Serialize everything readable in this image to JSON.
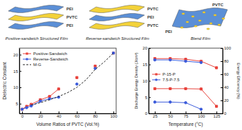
{
  "diagram": {
    "panels": [
      {
        "title": "Positive-sandwich Structured Film",
        "layers": [
          "PEI",
          "PVTC",
          "PEI"
        ]
      },
      {
        "title": "Reverse-sandwich Structured Film",
        "layers": [
          "PVTC",
          "PEI",
          "PVTC"
        ]
      },
      {
        "title": "Blend Film",
        "labels": [
          "PVTC",
          "PEI"
        ]
      }
    ]
  },
  "chart_data": [
    {
      "type": "line",
      "x_label": "Volume Ratios of PVTC (Vol.%)",
      "y_label": "Dielectric Constant",
      "x": [
        0,
        5,
        10,
        20,
        30,
        40,
        50,
        60,
        70,
        80,
        90,
        100
      ],
      "series": [
        {
          "name": "Positive-Sandwich",
          "color": "#e8413a",
          "marker": "square",
          "line_style": "solid",
          "values": [
            3.3,
            4.2,
            4.8,
            6.2,
            7.2,
            9.5,
            null,
            13.0,
            null,
            16.5,
            null,
            20.5
          ]
        },
        {
          "name": "Reverse-Sandwich",
          "color": "#3b5bdb",
          "marker": "circle",
          "line_style": "solid",
          "values": [
            3.3,
            3.8,
            4.3,
            5.8,
            6.5,
            7.0,
            null,
            11.0,
            null,
            15.8,
            null,
            20.5
          ]
        },
        {
          "name": "M-G",
          "color": "#222222",
          "marker": "none",
          "line_style": "dashed",
          "values": [
            3.3,
            null,
            4.6,
            5.3,
            6.2,
            7.2,
            8.4,
            10.0,
            12.3,
            15.5,
            17.8,
            20.5
          ]
        }
      ],
      "xlim": [
        -3,
        103
      ],
      "xticks": [
        0,
        20,
        40,
        60,
        80,
        100
      ],
      "ylim": [
        2,
        22
      ],
      "yticks": [
        5,
        10,
        15,
        20
      ],
      "legend": "upper left"
    },
    {
      "type": "line",
      "x_label": "Temperature (°C)",
      "y_label": "Discharge Energy Density (J/cm³)",
      "y2_label": "Energy Efficiency (%)",
      "x": [
        25,
        50,
        75,
        100,
        125
      ],
      "series": [
        {
          "name": "P-15-P",
          "color": "#e8413a",
          "marker": "square",
          "line_style": "solid",
          "values": [
            7.6,
            7.6,
            7.6,
            7.5,
            2.2
          ]
        },
        {
          "name": "7.5-P-7.5",
          "color": "#3b5bdb",
          "marker": "circle",
          "line_style": "solid",
          "values": [
            3.5,
            3.5,
            3.3,
            1.3,
            null
          ]
        },
        {
          "name": "P-15-P",
          "color": "#e8413a",
          "marker": "square",
          "line_style": "solid",
          "axis": "y2",
          "values": [
            84,
            84,
            83,
            80,
            70
          ]
        },
        {
          "name": "7.5-P-7.5",
          "color": "#3b5bdb",
          "marker": "circle",
          "line_style": "solid",
          "axis": "y2",
          "values": [
            82,
            82,
            80,
            78,
            null
          ]
        }
      ],
      "xlim": [
        15,
        135
      ],
      "xticks": [
        25,
        50,
        75,
        100,
        125
      ],
      "ylim": [
        0,
        20
      ],
      "yticks": [
        0,
        5,
        10,
        15,
        20
      ],
      "y2lim": [
        0,
        100
      ],
      "y2ticks": [
        0,
        20,
        40,
        60,
        80,
        100
      ],
      "legend": "left"
    }
  ]
}
